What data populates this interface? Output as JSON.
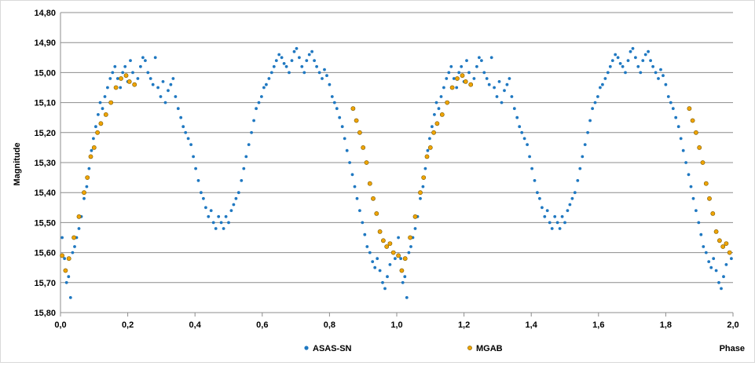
{
  "chart_data": {
    "type": "scatter",
    "xlabel": "Phase",
    "ylabel": "Magnitude",
    "xlim": [
      0.0,
      2.0
    ],
    "ylim": [
      15.8,
      14.8
    ],
    "y_inverted": true,
    "grid": "horizontal",
    "legend_position": "bottom",
    "x_ticks": [
      "0,0",
      "0,2",
      "0,4",
      "0,6",
      "0,8",
      "1,0",
      "1,2",
      "1,4",
      "1,6",
      "1,8",
      "2,0"
    ],
    "y_ticks": [
      "14,80",
      "14,90",
      "15,00",
      "15,10",
      "15,20",
      "15,30",
      "15,40",
      "15,50",
      "15,60",
      "15,70",
      "15,80"
    ],
    "series": [
      {
        "name": "ASAS-SN",
        "color": "#1f78c1",
        "marker": "filled-circle",
        "x": [
          0.005,
          0.012,
          0.018,
          0.024,
          0.03,
          0.036,
          0.042,
          0.048,
          0.055,
          0.062,
          0.07,
          0.078,
          0.085,
          0.092,
          0.098,
          0.105,
          0.112,
          0.118,
          0.125,
          0.132,
          0.14,
          0.148,
          0.155,
          0.162,
          0.17,
          0.178,
          0.185,
          0.192,
          0.2,
          0.208,
          0.215,
          0.222,
          0.23,
          0.238,
          0.245,
          0.252,
          0.26,
          0.268,
          0.275,
          0.282,
          0.29,
          0.298,
          0.305,
          0.312,
          0.32,
          0.328,
          0.335,
          0.342,
          0.35,
          0.358,
          0.365,
          0.372,
          0.38,
          0.388,
          0.395,
          0.402,
          0.41,
          0.418,
          0.425,
          0.432,
          0.44,
          0.448,
          0.455,
          0.462,
          0.47,
          0.478,
          0.485,
          0.492,
          0.5,
          0.508,
          0.515,
          0.522,
          0.53,
          0.538,
          0.545,
          0.552,
          0.56,
          0.568,
          0.575,
          0.582,
          0.59,
          0.598,
          0.605,
          0.612,
          0.62,
          0.628,
          0.635,
          0.642,
          0.65,
          0.658,
          0.665,
          0.672,
          0.68,
          0.688,
          0.695,
          0.702,
          0.71,
          0.718,
          0.725,
          0.732,
          0.74,
          0.748,
          0.755,
          0.762,
          0.77,
          0.778,
          0.785,
          0.792,
          0.8,
          0.808,
          0.815,
          0.822,
          0.83,
          0.838,
          0.845,
          0.852,
          0.86,
          0.868,
          0.875,
          0.882,
          0.89,
          0.898,
          0.905,
          0.912,
          0.92,
          0.928,
          0.935,
          0.942,
          0.95,
          0.958,
          0.965,
          0.972,
          0.98,
          0.988,
          0.995
        ],
        "y": [
          15.55,
          15.62,
          15.7,
          15.68,
          15.75,
          15.6,
          15.58,
          15.55,
          15.52,
          15.48,
          15.42,
          15.38,
          15.32,
          15.26,
          15.22,
          15.18,
          15.14,
          15.1,
          15.12,
          15.08,
          15.05,
          15.02,
          15.0,
          14.98,
          15.02,
          15.05,
          15.0,
          14.98,
          15.03,
          14.96,
          15.0,
          15.04,
          15.02,
          14.98,
          14.95,
          14.96,
          15.0,
          15.02,
          15.04,
          14.95,
          15.05,
          15.08,
          15.03,
          15.1,
          15.06,
          15.04,
          15.02,
          15.08,
          15.12,
          15.15,
          15.18,
          15.2,
          15.22,
          15.24,
          15.28,
          15.32,
          15.36,
          15.4,
          15.42,
          15.45,
          15.48,
          15.46,
          15.5,
          15.52,
          15.48,
          15.5,
          15.52,
          15.48,
          15.5,
          15.46,
          15.44,
          15.42,
          15.4,
          15.36,
          15.32,
          15.28,
          15.24,
          15.2,
          15.16,
          15.12,
          15.1,
          15.08,
          15.05,
          15.04,
          15.02,
          15.0,
          14.98,
          14.96,
          14.94,
          14.95,
          14.97,
          14.98,
          15.0,
          14.96,
          14.93,
          14.92,
          14.95,
          14.98,
          15.0,
          14.96,
          14.94,
          14.93,
          14.96,
          14.98,
          15.0,
          15.02,
          14.99,
          15.01,
          15.04,
          15.08,
          15.1,
          15.12,
          15.15,
          15.18,
          15.22,
          15.26,
          15.3,
          15.34,
          15.38,
          15.42,
          15.46,
          15.5,
          15.54,
          15.58,
          15.6,
          15.63,
          15.65,
          15.62,
          15.66,
          15.7,
          15.72,
          15.68,
          15.64,
          15.6,
          15.62
        ]
      },
      {
        "name": "MGAB",
        "color": "#f0a400",
        "marker": "open-circle",
        "x": [
          0.005,
          0.015,
          0.025,
          0.04,
          0.055,
          0.07,
          0.08,
          0.09,
          0.1,
          0.11,
          0.12,
          0.135,
          0.15,
          0.165,
          0.18,
          0.195,
          0.205,
          0.22,
          0.87,
          0.88,
          0.89,
          0.9,
          0.91,
          0.92,
          0.93,
          0.94,
          0.95,
          0.96,
          0.97,
          0.98,
          0.99
        ],
        "y": [
          15.61,
          15.66,
          15.62,
          15.55,
          15.48,
          15.4,
          15.35,
          15.28,
          15.25,
          15.2,
          15.17,
          15.14,
          15.1,
          15.05,
          15.02,
          15.01,
          15.03,
          15.04,
          15.12,
          15.16,
          15.2,
          15.25,
          15.3,
          15.37,
          15.42,
          15.47,
          15.53,
          15.56,
          15.58,
          15.57,
          15.6
        ]
      }
    ]
  }
}
